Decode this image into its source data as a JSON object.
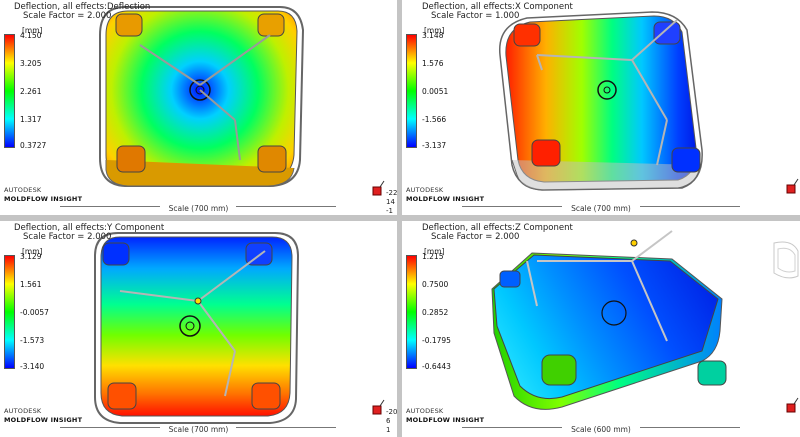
{
  "unit": "[mm]",
  "brand": {
    "line1": "AUTODESK",
    "line2": "MOLDFLOW INSIGHT"
  },
  "viewports": [
    {
      "title": "Deflection, all effects:Deflection",
      "scale_factor": "Scale Factor = 2.000",
      "legend": [
        "4.150",
        "3.205",
        "2.261",
        "1.317",
        "0.3727"
      ],
      "gradient": "deflection",
      "scale_label": "Scale (700 mm)",
      "triad": [
        "-22",
        "14",
        "-1"
      ]
    },
    {
      "title": "Deflection, all effects:X Component",
      "scale_factor": "Scale Factor = 1.000",
      "legend": [
        "3.148",
        "1.576",
        "0.0051",
        "-1.566",
        "-3.137"
      ],
      "gradient": "x",
      "scale_label": "Scale (700 mm)",
      "triad": []
    },
    {
      "title": "Deflection, all effects:Y Component",
      "scale_factor": "Scale Factor = 2.000",
      "legend": [
        "3.129",
        "1.561",
        "-0.0057",
        "-1.573",
        "-3.140"
      ],
      "gradient": "y",
      "scale_label": "Scale (700 mm)",
      "triad": [
        "-20",
        "6",
        "1"
      ]
    },
    {
      "title": "Deflection, all effects:Z Component",
      "scale_factor": "Scale Factor = 2.000",
      "legend": [
        "1.215",
        "0.7500",
        "0.2852",
        "-0.1795",
        "-0.6443"
      ],
      "gradient": "z",
      "scale_label": "Scale (600 mm)",
      "triad": []
    }
  ],
  "colors": {
    "spectrum": [
      "#ff0000",
      "#ffff00",
      "#00ff00",
      "#00ffff",
      "#0000ff"
    ],
    "divider": "#c4c4c4"
  }
}
